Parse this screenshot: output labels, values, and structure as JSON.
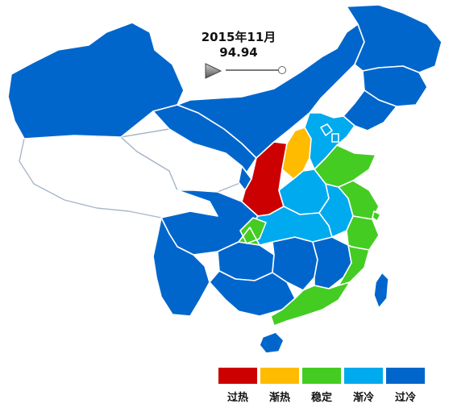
{
  "header": {
    "date": "2015年11月",
    "value": "94.94"
  },
  "controls": {
    "play_icon": "play-icon",
    "slider_value": 1.0
  },
  "legend": {
    "items": [
      {
        "label": "过热",
        "color": "#cc0000"
      },
      {
        "label": "渐热",
        "color": "#ffbb00"
      },
      {
        "label": "稳定",
        "color": "#44cc22"
      },
      {
        "label": "渐冷",
        "color": "#00aaee"
      },
      {
        "label": "过冷",
        "color": "#0066cc"
      }
    ]
  },
  "colors": {
    "no_data": "#ffffff",
    "border": "#ffffff",
    "no_data_border": "#a8b6c8"
  }
}
